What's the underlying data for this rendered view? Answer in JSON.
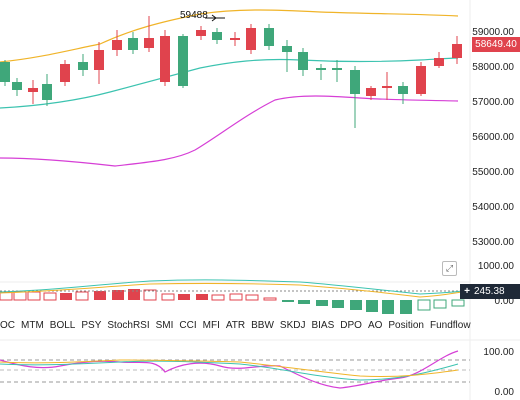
{
  "price_axis": [
    "59000.00",
    "58000.00",
    "57000.00",
    "56000.00",
    "55000.00",
    "54000.00",
    "53000.00"
  ],
  "current_price": "58649.40",
  "high_marker": "59488",
  "volume_axis": {
    "top": "1000.00",
    "bottom": "0.00"
  },
  "volume_value": "245.38",
  "indicator_tabs": [
    "OC",
    "MTM",
    "BOLL",
    "PSY",
    "StochRSI",
    "SMI",
    "CCI",
    "MFI",
    "ATR",
    "BBW",
    "SKDJ",
    "BIAS",
    "DPO",
    "AO",
    "Position",
    "Fundflow"
  ],
  "osc_axis": {
    "top": "100.00",
    "bottom": "0.00"
  },
  "colors": {
    "up": "#3fa77a",
    "down": "#e0434d",
    "upper_band": "#f0b429",
    "mid_band": "#3cc3b0",
    "lower_band": "#d63fd6"
  },
  "icons": {
    "expand": "expand-icon",
    "add": "plus-icon"
  }
}
